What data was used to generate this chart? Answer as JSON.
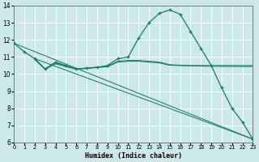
{
  "xlabel": "Humidex (Indice chaleur)",
  "xlim": [
    0,
    23
  ],
  "ylim": [
    6,
    14
  ],
  "xticks": [
    0,
    1,
    2,
    3,
    4,
    5,
    6,
    7,
    8,
    9,
    10,
    11,
    12,
    13,
    14,
    15,
    16,
    17,
    18,
    19,
    20,
    21,
    22,
    23
  ],
  "yticks": [
    6,
    7,
    8,
    9,
    10,
    11,
    12,
    13,
    14
  ],
  "bg_color": "#cce8e8",
  "line_color": "#1a7a6a",
  "grid_color": "#ffffff",
  "curve_main": {
    "x": [
      0,
      1,
      2,
      3,
      4,
      5,
      6,
      7,
      8,
      9,
      10,
      11,
      12,
      13,
      14,
      15,
      16,
      17,
      18,
      19,
      20,
      21,
      22,
      23
    ],
    "y": [
      11.8,
      11.3,
      10.9,
      10.3,
      10.7,
      10.5,
      10.3,
      10.35,
      10.4,
      10.5,
      10.9,
      11.0,
      12.1,
      13.0,
      13.55,
      13.75,
      13.5,
      12.5,
      11.5,
      10.5,
      9.2,
      8.0,
      7.2,
      6.2
    ]
  },
  "curve_flat1": {
    "x": [
      2,
      3,
      4,
      5,
      6,
      7,
      8,
      9,
      10,
      11,
      12,
      13,
      14,
      15,
      16,
      17,
      18,
      19,
      20,
      21,
      22,
      23
    ],
    "y": [
      10.9,
      10.3,
      10.65,
      10.5,
      10.3,
      10.35,
      10.4,
      10.45,
      10.75,
      10.8,
      10.8,
      10.75,
      10.7,
      10.55,
      10.52,
      10.5,
      10.5,
      10.5,
      10.5,
      10.5,
      10.5,
      10.5
    ]
  },
  "curve_flat2": {
    "x": [
      2,
      3,
      4,
      5,
      6,
      7,
      8,
      9,
      10,
      11,
      12,
      13,
      14,
      15,
      16,
      17,
      18,
      19,
      20,
      21,
      22,
      23
    ],
    "y": [
      10.85,
      10.28,
      10.6,
      10.44,
      10.28,
      10.33,
      10.38,
      10.43,
      10.7,
      10.75,
      10.75,
      10.7,
      10.65,
      10.52,
      10.5,
      10.48,
      10.47,
      10.46,
      10.45,
      10.45,
      10.44,
      10.44
    ]
  },
  "curve_diag1": {
    "x": [
      0,
      23
    ],
    "y": [
      11.8,
      6.2
    ]
  },
  "curve_diag2": {
    "x": [
      2,
      23
    ],
    "y": [
      10.9,
      6.2
    ]
  }
}
